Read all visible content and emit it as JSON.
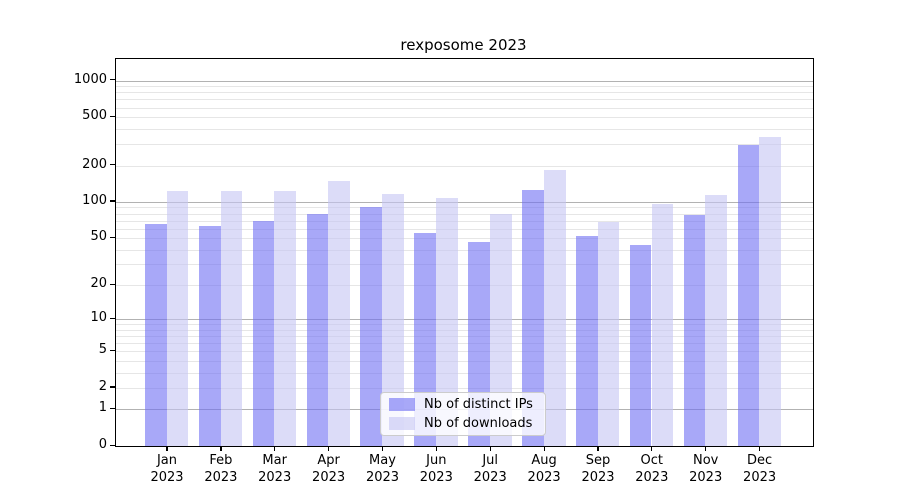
{
  "chart_data": {
    "type": "bar",
    "title": "rexposome 2023",
    "categories": [
      {
        "month": "Jan",
        "year": "2023"
      },
      {
        "month": "Feb",
        "year": "2023"
      },
      {
        "month": "Mar",
        "year": "2023"
      },
      {
        "month": "Apr",
        "year": "2023"
      },
      {
        "month": "May",
        "year": "2023"
      },
      {
        "month": "Jun",
        "year": "2023"
      },
      {
        "month": "Jul",
        "year": "2023"
      },
      {
        "month": "Aug",
        "year": "2023"
      },
      {
        "month": "Sep",
        "year": "2023"
      },
      {
        "month": "Oct",
        "year": "2023"
      },
      {
        "month": "Nov",
        "year": "2023"
      },
      {
        "month": "Dec",
        "year": "2023"
      }
    ],
    "series": [
      {
        "name": "Nb of distinct IPs",
        "color": "rgba(110,110,243,0.6)",
        "values": [
          66,
          63,
          69,
          79,
          91,
          55,
          46,
          126,
          52,
          44,
          78,
          298
        ]
      },
      {
        "name": "Nb of downloads",
        "color": "rgba(197,197,244,0.6)",
        "values": [
          123,
          123,
          123,
          149,
          117,
          108,
          80,
          184,
          68,
          97,
          115,
          345
        ]
      }
    ],
    "y_axis": {
      "scale": "log1p",
      "tick_labels": [
        "1000",
        "500",
        "200",
        "100",
        "50",
        "20",
        "10",
        "5",
        "2",
        "1",
        "0"
      ],
      "tick_values": [
        1000,
        500,
        200,
        100,
        50,
        20,
        10,
        5,
        2,
        1,
        0
      ],
      "major_grid_values": [
        1,
        10,
        100,
        1000
      ],
      "minor_grid_values": [
        2,
        3,
        4,
        5,
        6,
        7,
        8,
        9,
        20,
        30,
        40,
        50,
        60,
        70,
        80,
        90,
        200,
        300,
        400,
        500,
        600,
        700,
        800,
        900
      ],
      "ylim": [
        0,
        1420
      ]
    },
    "legend_position": "lower center",
    "grid": true
  },
  "colors": {
    "major_grid": "#b2b2b2",
    "minor_grid": "#e6e6e6",
    "spine": "#000000"
  }
}
